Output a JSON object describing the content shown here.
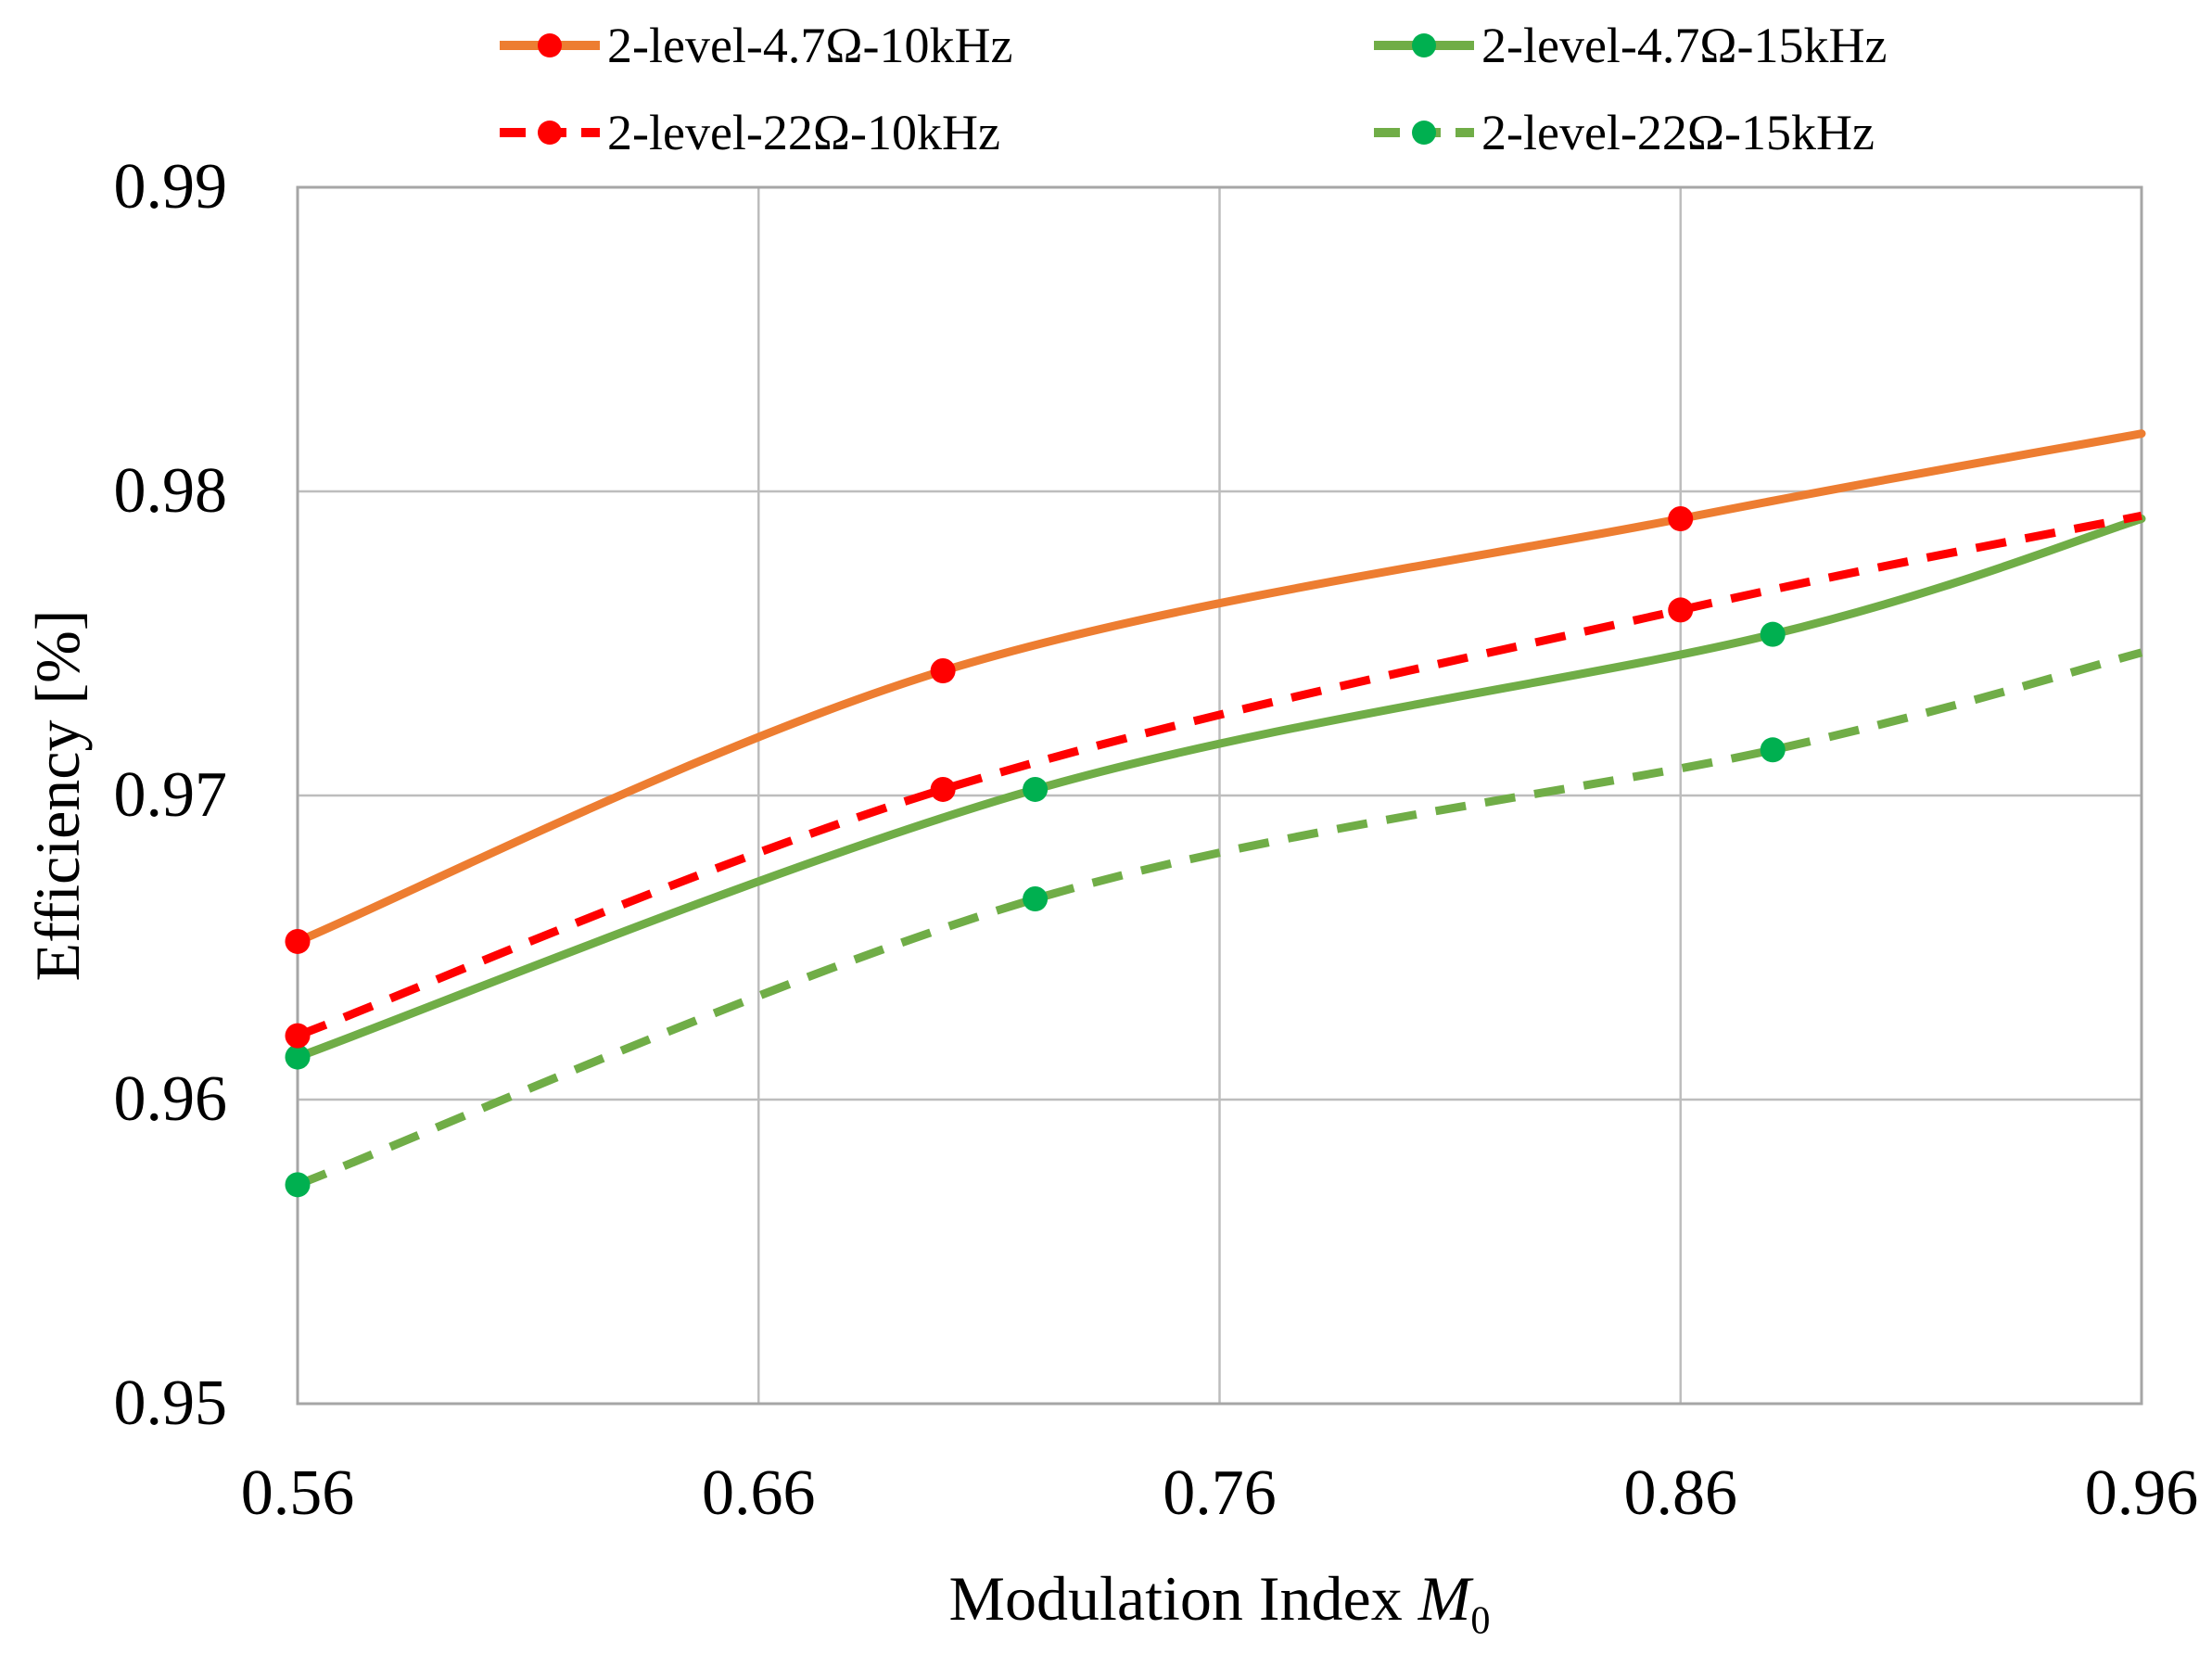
{
  "legend": {
    "items": [
      {
        "label": "2-level-4.7Ω-10kHz",
        "line_color": "#ED7D31",
        "marker_color": "#FF0000",
        "dashed": false
      },
      {
        "label": "2-level-4.7Ω-15kHz",
        "line_color": "#70AD47",
        "marker_color": "#00B050",
        "dashed": false
      },
      {
        "label": "2-level-22Ω-10kHz",
        "line_color": "#FF0000",
        "marker_color": "#FF0000",
        "dashed": true
      },
      {
        "label": "2-level-22Ω-15kHz",
        "line_color": "#70AD47",
        "marker_color": "#00B050",
        "dashed": true
      }
    ]
  },
  "axes": {
    "ylabel": "Efficiency [%]",
    "xlabel_text": "Modulation Index ",
    "xlabel_var": "M",
    "xlabel_sub": "0"
  },
  "chart_data": {
    "type": "line",
    "title": "",
    "xlabel": "Modulation Index M0",
    "ylabel": "Efficiency [%]",
    "xlim": [
      0.56,
      0.96
    ],
    "ylim": [
      0.95,
      0.99
    ],
    "grid": true,
    "legend_position": "top",
    "x_tick_values": [
      0.56,
      0.66,
      0.76,
      0.86,
      0.96
    ],
    "x_tick_labels": [
      "0.56",
      "0.66",
      "0.76",
      "0.86",
      "0.96"
    ],
    "y_tick_values": [
      0.99,
      0.98,
      0.97,
      0.96,
      0.95
    ],
    "y_tick_labels": [
      "0.99",
      "0.98",
      "0.97",
      "0.96",
      "0.95"
    ],
    "grid_x_values": [
      0.66,
      0.76,
      0.86
    ],
    "grid_y_values": [
      0.96,
      0.97,
      0.98
    ],
    "colors": {
      "orange": "#ED7D31",
      "red": "#FF0000",
      "green_line": "#70AD47",
      "green_marker": "#00B050",
      "gridline": "#BDBDBD",
      "border": "#A6A6A6"
    },
    "series": [
      {
        "name": "2-level-4.7Ω-10kHz",
        "style": "solid",
        "line_color": "#ED7D31",
        "marker_color": "#FF0000",
        "x": [
          0.56,
          0.7,
          0.86,
          0.96
        ],
        "y": [
          0.9652,
          0.9741,
          0.9791,
          0.9819
        ],
        "markers": [
          true,
          true,
          true,
          false
        ]
      },
      {
        "name": "2-level-4.7Ω-15kHz",
        "style": "solid",
        "line_color": "#70AD47",
        "marker_color": "#00B050",
        "x": [
          0.56,
          0.72,
          0.88,
          0.96
        ],
        "y": [
          0.9614,
          0.9702,
          0.9753,
          0.9791
        ],
        "markers": [
          true,
          true,
          true,
          false
        ]
      },
      {
        "name": "2-level-22Ω-10kHz",
        "style": "dashed",
        "line_color": "#FF0000",
        "marker_color": "#FF0000",
        "x": [
          0.56,
          0.7,
          0.86,
          0.96
        ],
        "y": [
          0.9621,
          0.9702,
          0.9761,
          0.9792
        ],
        "markers": [
          true,
          true,
          true,
          false
        ]
      },
      {
        "name": "2-level-22Ω-15kHz",
        "style": "dashed",
        "line_color": "#70AD47",
        "marker_color": "#00B050",
        "x": [
          0.56,
          0.72,
          0.88,
          0.96
        ],
        "y": [
          0.9572,
          0.9666,
          0.9715,
          0.9747
        ],
        "markers": [
          true,
          true,
          true,
          false
        ]
      }
    ]
  }
}
